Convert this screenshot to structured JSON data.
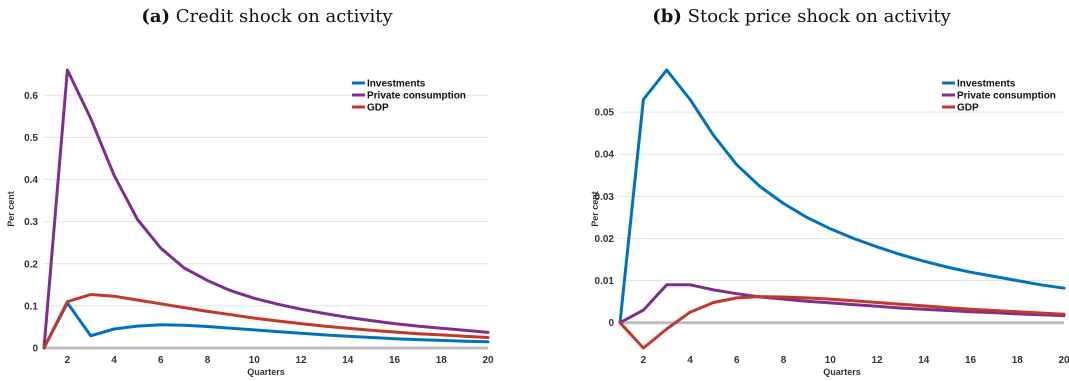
{
  "panels": [
    {
      "letter": "(a)",
      "title": "Credit shock on activity"
    },
    {
      "letter": "(b)",
      "title": "Stock price shock on activity"
    }
  ],
  "chart_data": [
    {
      "type": "line",
      "title": "(a) Credit shock on activity",
      "xlabel": "Quarters",
      "ylabel": "Per cent",
      "xlim": [
        1,
        20
      ],
      "ylim": [
        0,
        0.66
      ],
      "xticks": [
        2,
        4,
        6,
        8,
        10,
        12,
        14,
        16,
        18,
        20
      ],
      "yticks": [
        0,
        0.1,
        0.2,
        0.3,
        0.4,
        0.5,
        0.6
      ],
      "ytick_labels": [
        "0",
        "0.1",
        "0.2",
        "0.3",
        "0.4",
        "0.5",
        "0.6"
      ],
      "grid": "horizontal",
      "legend": "top-right",
      "zero_line": true,
      "x": [
        1,
        2,
        3,
        4,
        5,
        6,
        7,
        8,
        9,
        10,
        11,
        12,
        13,
        14,
        15,
        16,
        17,
        18,
        19,
        20
      ],
      "series": [
        {
          "name": "Investments",
          "color": "#0072BD",
          "values": [
            0,
            0.107,
            0.029,
            0.045,
            0.052,
            0.055,
            0.054,
            0.051,
            0.047,
            0.043,
            0.039,
            0.035,
            0.031,
            0.028,
            0.025,
            0.022,
            0.02,
            0.018,
            0.016,
            0.015
          ]
        },
        {
          "name": "Private consumption",
          "color": "#7E2F8E",
          "values": [
            0,
            0.66,
            0.545,
            0.41,
            0.305,
            0.237,
            0.19,
            0.16,
            0.136,
            0.118,
            0.104,
            0.092,
            0.082,
            0.073,
            0.065,
            0.058,
            0.052,
            0.047,
            0.042,
            0.037
          ]
        },
        {
          "name": "GDP",
          "color": "#C0392B",
          "values": [
            0,
            0.11,
            0.127,
            0.123,
            0.114,
            0.105,
            0.096,
            0.087,
            0.079,
            0.071,
            0.064,
            0.058,
            0.052,
            0.047,
            0.042,
            0.038,
            0.034,
            0.031,
            0.028,
            0.025
          ]
        }
      ]
    },
    {
      "type": "line",
      "title": "(b) Stock price shock on activity",
      "xlabel": "Quarters",
      "ylabel": "Per cent",
      "xlim": [
        1,
        20
      ],
      "ylim": [
        -0.006,
        0.06
      ],
      "xticks": [
        2,
        4,
        6,
        8,
        10,
        12,
        14,
        16,
        18,
        20
      ],
      "yticks": [
        0,
        0.01,
        0.02,
        0.03,
        0.04,
        0.05
      ],
      "ytick_labels": [
        "0",
        "0.01",
        "0.02",
        "0.03",
        "0.04",
        "0.05"
      ],
      "grid": "horizontal",
      "legend": "top-right",
      "zero_line": true,
      "x": [
        1,
        2,
        3,
        4,
        5,
        6,
        7,
        8,
        9,
        10,
        11,
        12,
        13,
        14,
        15,
        16,
        17,
        18,
        19,
        20
      ],
      "series": [
        {
          "name": "Investments",
          "color": "#0072BD",
          "values": [
            0,
            0.053,
            0.06,
            0.053,
            0.0445,
            0.0375,
            0.0323,
            0.0283,
            0.025,
            0.0223,
            0.02,
            0.018,
            0.0162,
            0.0146,
            0.0132,
            0.012,
            0.011,
            0.01,
            0.009,
            0.0082
          ]
        },
        {
          "name": "Private consumption",
          "color": "#7E2F8E",
          "values": [
            0,
            0.003,
            0.009,
            0.009,
            0.0078,
            0.0069,
            0.0061,
            0.0056,
            0.0051,
            0.0047,
            0.0043,
            0.0039,
            0.0035,
            0.0032,
            0.0029,
            0.0026,
            0.0024,
            0.0021,
            0.0019,
            0.0017
          ]
        },
        {
          "name": "GDP",
          "color": "#C0392B",
          "values": [
            0,
            -0.006,
            -0.0015,
            0.0025,
            0.0048,
            0.0059,
            0.0062,
            0.0061,
            0.0059,
            0.0056,
            0.0052,
            0.0048,
            0.0044,
            0.004,
            0.0036,
            0.0032,
            0.0029,
            0.0026,
            0.0023,
            0.002
          ]
        }
      ]
    }
  ]
}
